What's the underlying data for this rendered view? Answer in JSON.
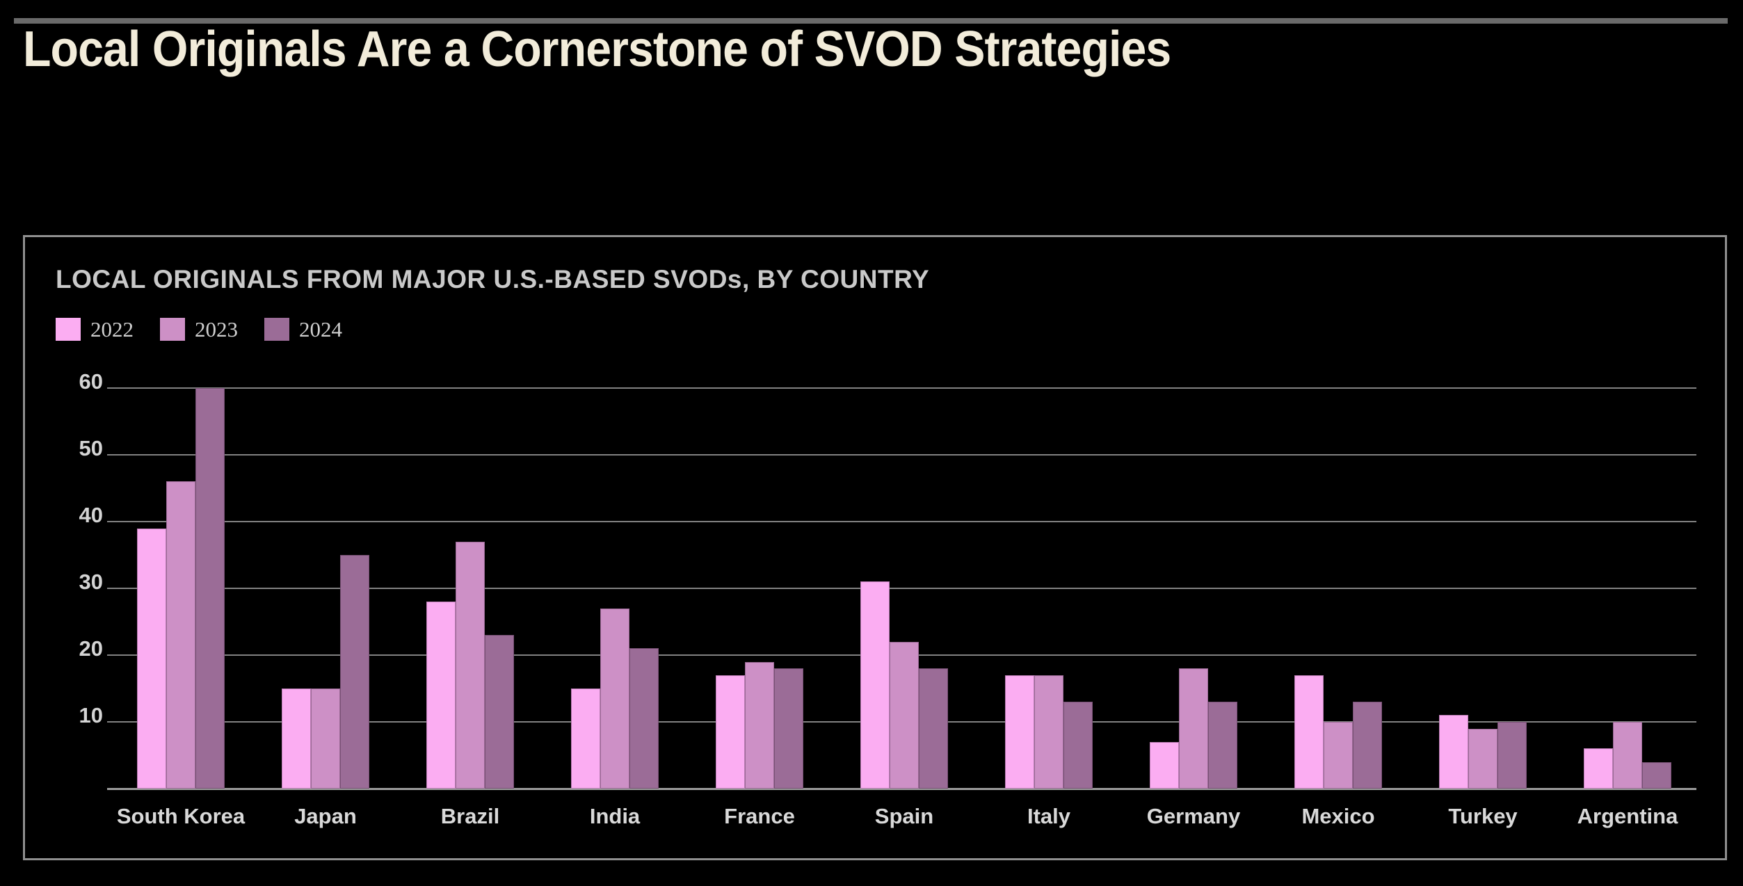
{
  "header": {
    "title": "Local Originals Are a Cornerstone of SVOD Strategies"
  },
  "panel": {
    "subtitle": "LOCAL ORIGINALS FROM MAJOR U.S.-BASED SVODs, BY COUNTRY"
  },
  "colors": {
    "background": "#000000",
    "title_text": "#f2ecda",
    "subtitle_text": "#c9c9c9",
    "panel_border": "#8f8f8f",
    "gridline": "#828282",
    "axis_baseline": "#9c9c9c",
    "axis_text": "#d4d4d4",
    "category_text": "#d9d9d9",
    "series_2022": "#fbadf2",
    "series_2023": "#cd90c6",
    "series_2024": "#9b6c97"
  },
  "chart_data": {
    "type": "bar",
    "title": "LOCAL ORIGINALS FROM MAJOR U.S.-BASED SVODs, BY COUNTRY",
    "categories": [
      "South Korea",
      "Japan",
      "Brazil",
      "India",
      "France",
      "Spain",
      "Italy",
      "Germany",
      "Mexico",
      "Turkey",
      "Argentina"
    ],
    "series": [
      {
        "name": "2022",
        "color": "#fbadf2",
        "values": [
          39,
          15,
          28,
          15,
          17,
          31,
          17,
          7,
          17,
          11,
          6
        ]
      },
      {
        "name": "2023",
        "color": "#cd90c6",
        "values": [
          46,
          15,
          37,
          27,
          19,
          22,
          17,
          18,
          10,
          9,
          10
        ]
      },
      {
        "name": "2024",
        "color": "#9b6c97",
        "values": [
          60,
          35,
          23,
          21,
          18,
          18,
          13,
          13,
          13,
          10,
          4
        ]
      }
    ],
    "xlabel": "",
    "ylabel": "",
    "ylim": [
      0,
      60
    ],
    "yticks": [
      10,
      20,
      30,
      40,
      50,
      60
    ],
    "grid": true,
    "legend_position": "top-left"
  }
}
